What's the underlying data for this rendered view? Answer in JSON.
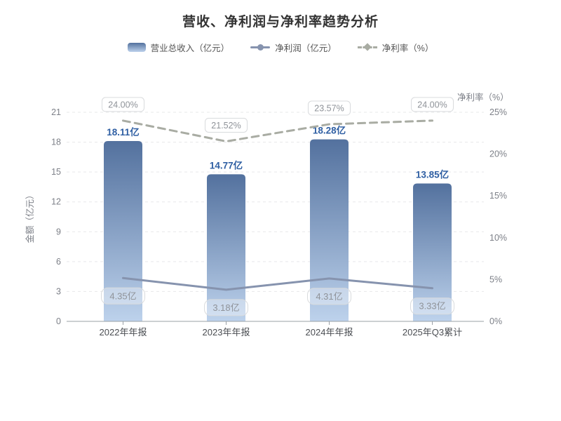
{
  "chart_data": {
    "type": "combo",
    "title": "营收、净利润与净利率趋势分析",
    "categories": [
      "2022年年报",
      "2023年年报",
      "2024年年报",
      "2025年Q3累计"
    ],
    "series": [
      {
        "name": "营业总收入（亿元）",
        "type": "bar",
        "axis": "left",
        "values": [
          18.11,
          14.77,
          18.28,
          13.85
        ],
        "labels": [
          "18.11亿",
          "14.77亿",
          "18.28亿",
          "13.85亿"
        ]
      },
      {
        "name": "净利润（亿元）",
        "type": "line",
        "axis": "left",
        "values": [
          4.35,
          3.18,
          4.31,
          3.33
        ],
        "labels": [
          "4.35亿",
          "3.18亿",
          "4.31亿",
          "3.33亿"
        ]
      },
      {
        "name": "净利率（%）",
        "type": "line-dashed",
        "axis": "right",
        "values": [
          24.0,
          21.52,
          23.57,
          24.0
        ],
        "labels": [
          "24.00%",
          "21.52%",
          "23.57%",
          "24.00%"
        ]
      }
    ],
    "left_axis": {
      "title": "金额（亿元）",
      "min": 0,
      "max": 21,
      "ticks": [
        0,
        3,
        6,
        9,
        12,
        15,
        18,
        21
      ]
    },
    "right_axis": {
      "title": "净利率（%）",
      "min": 0,
      "max": 25,
      "ticks": [
        "0%",
        "5%",
        "10%",
        "15%",
        "20%",
        "25%"
      ]
    },
    "grid": true,
    "legend_position": "top",
    "colors": {
      "title_text": "#333333",
      "legend_text": "#555555",
      "bar_top": "#53719e",
      "bar_bottom": "#bdd2ec",
      "bar_label": "#2f5fa3",
      "profit_line": "#8693ae",
      "margin_line": "#a9aca3",
      "badge_text": "#8f9399",
      "badge_border": "#d9dbdd",
      "axis_text": "#7d8088",
      "x_label": "#4a4d52",
      "grid_line": "#e7e8ea",
      "axis_line": "#9aa0a6"
    }
  }
}
